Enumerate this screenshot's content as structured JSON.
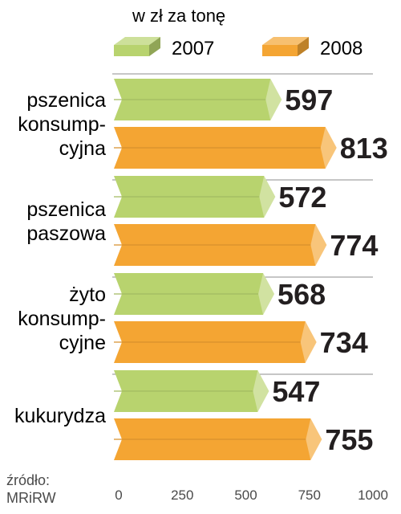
{
  "chart_data": {
    "type": "bar",
    "orientation": "horizontal",
    "title": "",
    "subtitle": "w zł za tonę",
    "categories": [
      [
        "pszenica",
        "konsump-",
        "cyjna"
      ],
      [
        "pszenica",
        "paszowa"
      ],
      [
        "żyto",
        "konsump-",
        "cyjne"
      ],
      [
        "kukurydza"
      ]
    ],
    "series": [
      {
        "name": "2007",
        "values": [
          597,
          572,
          568,
          547
        ],
        "color": "#b8d36e"
      },
      {
        "name": "2008",
        "values": [
          813,
          774,
          734,
          755
        ],
        "color": "#f4a533"
      }
    ],
    "xlim": [
      0,
      1000
    ],
    "xticks": [
      "0",
      "250",
      "500",
      "750",
      "1000"
    ],
    "legend_placement": "top",
    "grid": false,
    "source": [
      "źródło:",
      "MRiRW"
    ]
  }
}
